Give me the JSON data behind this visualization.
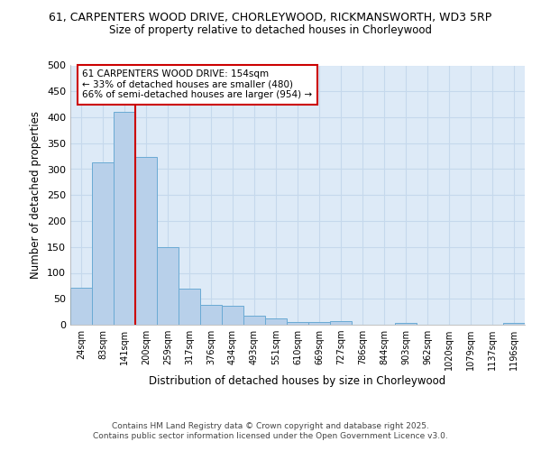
{
  "title_line1": "61, CARPENTERS WOOD DRIVE, CHORLEYWOOD, RICKMANSWORTH, WD3 5RP",
  "title_line2": "Size of property relative to detached houses in Chorleywood",
  "xlabel": "Distribution of detached houses by size in Chorleywood",
  "ylabel": "Number of detached properties",
  "categories": [
    "24sqm",
    "83sqm",
    "141sqm",
    "200sqm",
    "259sqm",
    "317sqm",
    "376sqm",
    "434sqm",
    "493sqm",
    "551sqm",
    "610sqm",
    "669sqm",
    "727sqm",
    "786sqm",
    "844sqm",
    "903sqm",
    "962sqm",
    "1020sqm",
    "1079sqm",
    "1137sqm",
    "1196sqm"
  ],
  "values": [
    72,
    313,
    410,
    323,
    150,
    70,
    38,
    37,
    18,
    13,
    6,
    6,
    7,
    0,
    0,
    3,
    0,
    0,
    0,
    0,
    3
  ],
  "bar_color": "#b8d0ea",
  "bar_edge_color": "#6aaad4",
  "bar_edge_width": 0.7,
  "property_line_x": 2.5,
  "property_line_color": "#cc0000",
  "annotation_text": "61 CARPENTERS WOOD DRIVE: 154sqm\n← 33% of detached houses are smaller (480)\n66% of semi-detached houses are larger (954) →",
  "annotation_box_color": "#ffffff",
  "annotation_box_edge_color": "#cc0000",
  "grid_color": "#c5d8ec",
  "background_color": "#ddeaf7",
  "footer_text": "Contains HM Land Registry data © Crown copyright and database right 2025.\nContains public sector information licensed under the Open Government Licence v3.0.",
  "ylim": [
    0,
    500
  ],
  "yticks": [
    0,
    50,
    100,
    150,
    200,
    250,
    300,
    350,
    400,
    450,
    500
  ]
}
